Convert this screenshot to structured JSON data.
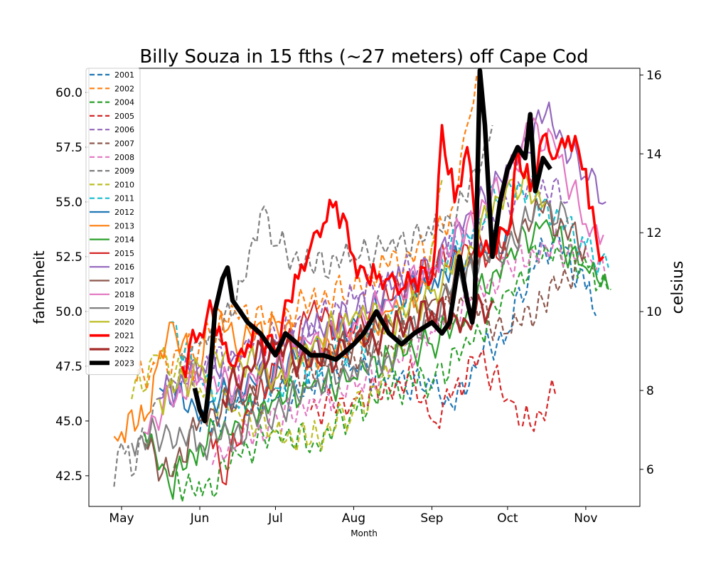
{
  "chart_data": {
    "type": "line",
    "title": "Billy Souza in 15 fths (~27 meters) off Cape Cod",
    "xlabel": "Month",
    "ylabel": "fahrenheit",
    "y2label": "celsius",
    "ylim": [
      41.1,
      61.1
    ],
    "y2lim": [
      5.06,
      16.17
    ],
    "yticks": [
      "42.5",
      "45.0",
      "47.5",
      "50.0",
      "52.5",
      "55.0",
      "57.5",
      "60.0"
    ],
    "y2ticks": [
      "6",
      "8",
      "10",
      "12",
      "14",
      "16"
    ],
    "xticks": [
      "May",
      "Jun",
      "Jul",
      "Aug",
      "Sep",
      "Oct",
      "Nov"
    ],
    "legend_position": "upper-left",
    "grid": false,
    "series": [
      {
        "name": "2001",
        "color": "#1f77b4",
        "style": "dashed",
        "width": 2.2,
        "x": [
          "2001-06-01",
          "2001-06-15",
          "2001-07-01",
          "2001-07-15",
          "2001-08-01",
          "2001-08-15",
          "2001-09-01",
          "2001-09-10",
          "2001-09-20",
          "2001-10-01",
          "2001-10-10",
          "2001-10-20",
          "2001-11-01",
          "2001-11-05"
        ],
        "y": [
          44.5,
          45.5,
          46.0,
          46.5,
          47.5,
          47.0,
          46.5,
          45.5,
          48.0,
          49.0,
          52.0,
          53.5,
          51.0,
          49.8
        ]
      },
      {
        "name": "2002",
        "color": "#ff7f0e",
        "style": "dashed",
        "width": 2.2,
        "x": [
          "2002-05-07",
          "2002-05-15",
          "2002-06-01",
          "2002-06-15",
          "2002-07-01",
          "2002-07-15",
          "2002-08-01",
          "2002-08-15",
          "2002-09-01",
          "2002-09-10",
          "2002-09-15",
          "2002-09-20"
        ],
        "y": [
          46.8,
          47.5,
          48.5,
          50.0,
          49.5,
          50.5,
          51.0,
          52.0,
          53.0,
          55.0,
          58.5,
          61.0
        ]
      },
      {
        "name": "2004",
        "color": "#2ca02c",
        "style": "dashed",
        "width": 2.2,
        "x": [
          "2004-05-20",
          "2004-06-01",
          "2004-06-15",
          "2004-07-01",
          "2004-07-15",
          "2004-08-01",
          "2004-08-15",
          "2004-09-01",
          "2004-09-15",
          "2004-10-01",
          "2004-10-15",
          "2004-11-01",
          "2004-11-10"
        ],
        "y": [
          42.5,
          41.6,
          43.5,
          44.5,
          44.0,
          45.5,
          46.5,
          47.0,
          48.5,
          51.0,
          53.0,
          52.0,
          51.0
        ]
      },
      {
        "name": "2005",
        "color": "#d62728",
        "style": "dashed",
        "width": 2.2,
        "x": [
          "2005-07-15",
          "2005-08-01",
          "2005-08-15",
          "2005-08-25",
          "2005-09-01",
          "2005-09-10",
          "2005-09-20",
          "2005-10-01",
          "2005-10-10",
          "2005-10-20"
        ],
        "y": [
          45.5,
          46.0,
          46.5,
          47.0,
          45.0,
          46.5,
          48.0,
          46.0,
          44.8,
          46.2
        ]
      },
      {
        "name": "2006",
        "color": "#9467bd",
        "style": "dashed",
        "width": 2.2,
        "x": [
          "2006-05-20",
          "2006-06-01",
          "2006-06-15",
          "2006-07-01",
          "2006-07-15",
          "2006-08-01",
          "2006-08-15",
          "2006-09-01",
          "2006-09-15",
          "2006-10-01",
          "2006-10-15",
          "2006-10-25"
        ],
        "y": [
          46.5,
          47.5,
          48.0,
          49.0,
          49.5,
          50.5,
          51.5,
          52.0,
          53.5,
          55.0,
          56.0,
          55.0
        ]
      },
      {
        "name": "2007",
        "color": "#8c564b",
        "style": "dashed",
        "width": 2.2,
        "x": [
          "2007-06-15",
          "2007-07-01",
          "2007-07-15",
          "2007-08-01",
          "2007-08-15",
          "2007-09-01",
          "2007-09-15",
          "2007-10-01",
          "2007-10-15",
          "2007-11-01"
        ],
        "y": [
          45.5,
          46.5,
          47.5,
          48.0,
          48.5,
          49.5,
          50.5,
          49.0,
          50.5,
          52.5
        ]
      },
      {
        "name": "2008",
        "color": "#e377c2",
        "style": "dashed",
        "width": 2.2,
        "x": [
          "2008-06-05",
          "2008-06-15",
          "2008-07-01",
          "2008-07-15",
          "2008-08-01",
          "2008-08-15",
          "2008-09-01",
          "2008-09-15",
          "2008-10-01",
          "2008-10-15",
          "2008-11-01",
          "2008-11-08"
        ],
        "y": [
          43.0,
          44.0,
          45.0,
          46.0,
          46.5,
          47.5,
          49.0,
          50.5,
          52.0,
          53.0,
          52.5,
          51.5
        ]
      },
      {
        "name": "2009",
        "color": "#7f7f7f",
        "style": "dashed",
        "width": 2.2,
        "x": [
          "2009-04-28",
          "2009-05-01",
          "2009-05-05",
          "2009-05-15",
          "2009-06-01",
          "2009-06-15",
          "2009-06-25",
          "2009-07-01",
          "2009-07-15",
          "2009-08-01",
          "2009-08-15",
          "2009-09-01",
          "2009-09-15",
          "2009-09-25"
        ],
        "y": [
          42.0,
          44.0,
          42.5,
          46.0,
          48.5,
          50.0,
          54.5,
          53.0,
          52.0,
          52.5,
          53.0,
          53.5,
          55.0,
          58.5
        ]
      },
      {
        "name": "2010",
        "color": "#bcbd22",
        "style": "dashed",
        "width": 2.2,
        "x": [
          "2010-05-05",
          "2010-05-15",
          "2010-06-01",
          "2010-06-15",
          "2010-07-01",
          "2010-07-15",
          "2010-08-01",
          "2010-08-15",
          "2010-09-01",
          "2010-09-05"
        ],
        "y": [
          46.0,
          48.0,
          46.5,
          45.5,
          44.5,
          44.0,
          45.5,
          47.0,
          53.0,
          56.0
        ]
      },
      {
        "name": "2011",
        "color": "#17becf",
        "style": "dashed",
        "width": 2.2,
        "x": [
          "2011-05-20",
          "2011-06-01",
          "2011-06-15",
          "2011-07-01",
          "2011-07-15",
          "2011-08-01",
          "2011-08-15",
          "2011-09-01",
          "2011-09-15",
          "2011-10-01",
          "2011-10-15",
          "2011-11-01",
          "2011-11-10"
        ],
        "y": [
          49.5,
          47.0,
          46.0,
          46.5,
          47.5,
          48.5,
          49.5,
          52.0,
          53.5,
          56.0,
          55.0,
          53.0,
          52.0
        ]
      },
      {
        "name": "2012",
        "color": "#1f77b4",
        "style": "solid",
        "width": 2.2,
        "x": [
          "2012-05-15",
          "2012-06-01",
          "2012-06-15",
          "2012-07-01",
          "2012-07-15",
          "2012-08-01",
          "2012-08-15",
          "2012-09-01",
          "2012-09-15",
          "2012-10-01"
        ],
        "y": [
          46.5,
          45.5,
          46.5,
          47.5,
          48.5,
          49.5,
          50.5,
          51.5,
          52.5,
          53.5
        ]
      },
      {
        "name": "2013",
        "color": "#ff7f0e",
        "style": "solid",
        "width": 2.2,
        "x": [
          "2013-04-28",
          "2013-05-01",
          "2013-05-05",
          "2013-05-10",
          "2013-05-15",
          "2013-05-20",
          "2013-06-01",
          "2013-06-05",
          "2013-06-15",
          "2013-07-01",
          "2013-07-15",
          "2013-08-01",
          "2013-08-15",
          "2013-09-01"
        ],
        "y": [
          44.3,
          44.5,
          45.5,
          45.0,
          47.5,
          49.5,
          47.0,
          50.5,
          48.5,
          49.5,
          48.0,
          48.5,
          50.0,
          51.5
        ]
      },
      {
        "name": "2014",
        "color": "#2ca02c",
        "style": "solid",
        "width": 2.2,
        "x": [
          "2014-05-10",
          "2014-05-20",
          "2014-06-01",
          "2014-06-15",
          "2014-07-01",
          "2014-07-15",
          "2014-08-01",
          "2014-08-15",
          "2014-09-01",
          "2014-09-15",
          "2014-10-01",
          "2014-10-15",
          "2014-11-01",
          "2014-11-10"
        ],
        "y": [
          44.5,
          42.0,
          44.0,
          45.0,
          46.0,
          46.5,
          47.0,
          48.0,
          48.5,
          50.0,
          52.5,
          54.0,
          52.0,
          51.0
        ]
      },
      {
        "name": "2015",
        "color": "#d62728",
        "style": "solid",
        "width": 2.2,
        "x": [
          "2015-06-05",
          "2015-06-10",
          "2015-06-20",
          "2015-07-01",
          "2015-07-15",
          "2015-08-01",
          "2015-08-15",
          "2015-09-01",
          "2015-09-15",
          "2015-10-01"
        ],
        "y": [
          44.5,
          42.2,
          45.5,
          47.5,
          50.0,
          49.0,
          50.5,
          52.0,
          53.0,
          52.5
        ]
      },
      {
        "name": "2016",
        "color": "#9467bd",
        "style": "solid",
        "width": 2.2,
        "x": [
          "2016-05-15",
          "2016-06-01",
          "2016-06-15",
          "2016-07-01",
          "2016-07-15",
          "2016-08-01",
          "2016-08-15",
          "2016-09-01",
          "2016-09-15",
          "2016-10-01",
          "2016-10-15",
          "2016-11-01",
          "2016-11-08"
        ],
        "y": [
          46.0,
          47.5,
          48.0,
          48.5,
          49.0,
          50.0,
          51.0,
          52.0,
          54.5,
          56.5,
          59.0,
          56.0,
          55.0
        ]
      },
      {
        "name": "2017",
        "color": "#8c564b",
        "style": "solid",
        "width": 2.2,
        "x": [
          "2017-05-10",
          "2017-05-20",
          "2017-06-01",
          "2017-06-15",
          "2017-07-01",
          "2017-07-15",
          "2017-08-01",
          "2017-08-15",
          "2017-09-01",
          "2017-09-15",
          "2017-10-01",
          "2017-10-15",
          "2017-11-01"
        ],
        "y": [
          44.0,
          42.5,
          45.0,
          46.0,
          47.0,
          48.0,
          48.5,
          49.5,
          50.5,
          52.0,
          53.5,
          54.5,
          53.0
        ]
      },
      {
        "name": "2018",
        "color": "#e377c2",
        "style": "solid",
        "width": 2.2,
        "x": [
          "2018-05-10",
          "2018-05-20",
          "2018-06-01",
          "2018-06-15",
          "2018-07-01",
          "2018-07-15",
          "2018-08-01",
          "2018-08-15",
          "2018-09-01",
          "2018-09-15",
          "2018-10-01",
          "2018-10-10",
          "2018-10-20",
          "2018-11-01",
          "2018-11-08"
        ],
        "y": [
          44.5,
          46.0,
          47.0,
          46.5,
          47.5,
          48.5,
          49.5,
          50.5,
          52.0,
          54.0,
          56.0,
          58.5,
          57.5,
          54.0,
          53.5
        ]
      },
      {
        "name": "2019",
        "color": "#7f7f7f",
        "style": "solid",
        "width": 2.2,
        "x": [
          "2019-05-05",
          "2019-05-20",
          "2019-06-01",
          "2019-06-15",
          "2019-07-01",
          "2019-07-15",
          "2019-08-01",
          "2019-08-15",
          "2019-09-01",
          "2019-09-15",
          "2019-10-01",
          "2019-10-15",
          "2019-10-25"
        ],
        "y": [
          44.0,
          44.5,
          44.0,
          44.5,
          45.5,
          46.5,
          47.5,
          48.0,
          50.0,
          52.0,
          53.0,
          55.0,
          54.0
        ]
      },
      {
        "name": "2020",
        "color": "#bcbd22",
        "style": "solid",
        "width": 2.2,
        "x": [
          "2020-05-15",
          "2020-06-01",
          "2020-06-15",
          "2020-07-01",
          "2020-07-15",
          "2020-08-01",
          "2020-08-15",
          "2020-09-01",
          "2020-09-15",
          "2020-10-01",
          "2020-10-15"
        ],
        "y": [
          46.0,
          47.5,
          48.0,
          47.0,
          48.5,
          50.0,
          49.5,
          51.0,
          53.0,
          56.0,
          55.0
        ]
      },
      {
        "name": "2021",
        "color": "#ff0000",
        "style": "solid",
        "width": 3.6,
        "x": [
          "2021-05-25",
          "2021-06-01",
          "2021-06-05",
          "2021-06-10",
          "2021-06-15",
          "2021-06-20",
          "2021-06-25",
          "2021-07-01",
          "2021-07-05",
          "2021-07-10",
          "2021-07-15",
          "2021-07-20",
          "2021-07-25",
          "2021-08-01",
          "2021-08-05",
          "2021-08-10",
          "2021-08-15",
          "2021-08-20",
          "2021-08-25",
          "2021-09-01",
          "2021-09-05",
          "2021-09-10",
          "2021-09-15",
          "2021-09-20",
          "2021-09-25",
          "2021-10-01",
          "2021-10-05",
          "2021-10-10",
          "2021-10-15",
          "2021-10-20",
          "2021-10-25",
          "2021-11-01",
          "2021-11-05",
          "2021-11-08"
        ],
        "y": [
          47.5,
          49.0,
          50.5,
          48.5,
          47.5,
          48.5,
          49.0,
          48.0,
          50.5,
          51.5,
          53.0,
          54.0,
          55.0,
          52.5,
          52.0,
          51.5,
          51.5,
          51.0,
          51.5,
          51.5,
          58.5,
          55.0,
          57.5,
          52.5,
          53.0,
          53.5,
          57.5,
          55.5,
          58.0,
          57.0,
          58.0,
          56.5,
          53.5,
          52.5
        ]
      },
      {
        "name": "2022",
        "color": "#a52a2a",
        "style": "solid",
        "width": 3.2,
        "x": [
          "2022-06-10",
          "2022-06-20",
          "2022-07-01",
          "2022-07-15",
          "2022-08-01",
          "2022-08-15",
          "2022-09-01",
          "2022-09-15",
          "2022-09-25"
        ],
        "y": [
          46.0,
          47.5,
          48.5,
          47.5,
          48.5,
          49.0,
          50.0,
          49.5,
          50.5
        ]
      },
      {
        "name": "2023",
        "color": "#000000",
        "style": "solid",
        "width": 6.5,
        "x": [
          "2023-05-30",
          "2023-06-01",
          "2023-06-03",
          "2023-06-05",
          "2023-06-07",
          "2023-06-10",
          "2023-06-12",
          "2023-06-14",
          "2023-06-17",
          "2023-06-20",
          "2023-06-25",
          "2023-07-01",
          "2023-07-05",
          "2023-07-10",
          "2023-07-15",
          "2023-07-20",
          "2023-07-25",
          "2023-08-01",
          "2023-08-05",
          "2023-08-10",
          "2023-08-15",
          "2023-08-20",
          "2023-08-25",
          "2023-09-01",
          "2023-09-05",
          "2023-09-08",
          "2023-09-12",
          "2023-09-15",
          "2023-09-17",
          "2023-09-18",
          "2023-09-20",
          "2023-09-22",
          "2023-09-25",
          "2023-09-28",
          "2023-10-01",
          "2023-10-05",
          "2023-10-08",
          "2023-10-10",
          "2023-10-12",
          "2023-10-15",
          "2023-10-18"
        ],
        "y": [
          46.5,
          45.5,
          45.0,
          47.0,
          50.0,
          51.5,
          52.0,
          50.5,
          50.0,
          49.5,
          49.0,
          48.0,
          49.0,
          48.5,
          48.0,
          48.0,
          47.8,
          48.5,
          49.0,
          50.0,
          49.0,
          48.5,
          49.0,
          49.5,
          49.0,
          49.5,
          52.5,
          50.5,
          49.5,
          50.5,
          61.0,
          58.5,
          52.5,
          55.0,
          56.5,
          57.5,
          57.0,
          59.0,
          55.5,
          57.0,
          56.5
        ]
      }
    ]
  }
}
